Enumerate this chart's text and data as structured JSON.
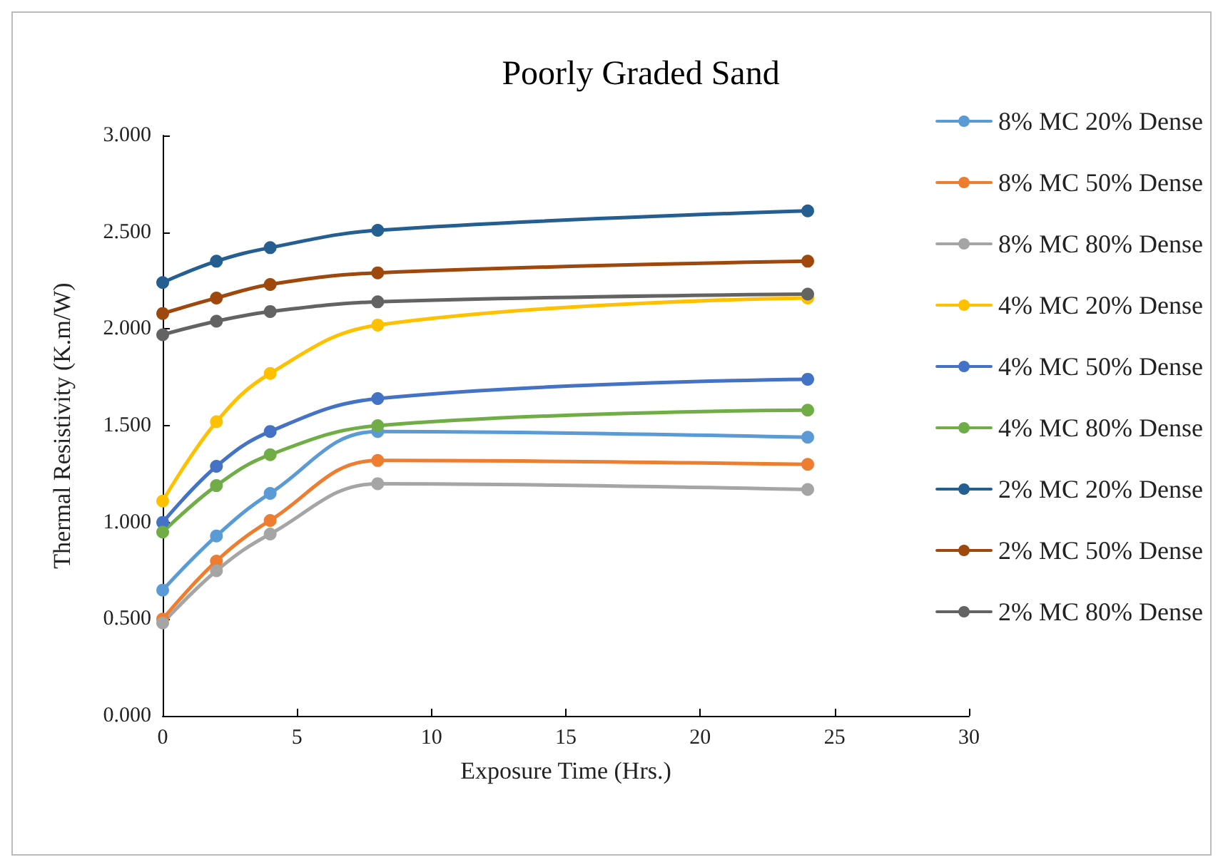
{
  "chart_data": {
    "type": "line",
    "title": "Poorly Graded Sand",
    "xlabel": "Exposure Time (Hrs.)",
    "ylabel": "Thermal Resistivity (K.m/W)",
    "x": [
      0,
      2,
      4,
      8,
      24
    ],
    "xlim": [
      0,
      30
    ],
    "xticks": [
      0,
      5,
      10,
      15,
      20,
      25,
      30
    ],
    "ylim": [
      0,
      3
    ],
    "yticks": [
      {
        "value": 0,
        "label": "0.000"
      },
      {
        "value": 0.5,
        "label": "0.500"
      },
      {
        "value": 1,
        "label": "1.000"
      },
      {
        "value": 1.5,
        "label": "1.500"
      },
      {
        "value": 2,
        "label": "2.000"
      },
      {
        "value": 2.5,
        "label": "2.500"
      },
      {
        "value": 3,
        "label": "3.000"
      }
    ],
    "grid": false,
    "legend": "right",
    "marker": "circle",
    "line_style": "solid",
    "series": [
      {
        "name": "8% MC 20% Dense",
        "color": "#5b9bd5",
        "values": [
          0.65,
          0.93,
          1.15,
          1.47,
          1.44
        ]
      },
      {
        "name": "8% MC 50% Dense",
        "color": "#ed7d31",
        "values": [
          0.5,
          0.8,
          1.01,
          1.32,
          1.3
        ]
      },
      {
        "name": "8% MC 80% Dense",
        "color": "#a5a5a5",
        "values": [
          0.48,
          0.75,
          0.94,
          1.2,
          1.17
        ]
      },
      {
        "name": "4% MC 20% Dense",
        "color": "#ffc000",
        "values": [
          1.11,
          1.52,
          1.77,
          2.02,
          2.16
        ]
      },
      {
        "name": "4% MC 50% Dense",
        "color": "#4472c4",
        "values": [
          1.0,
          1.29,
          1.47,
          1.64,
          1.74
        ]
      },
      {
        "name": "4% MC 80% Dense",
        "color": "#70ad47",
        "values": [
          0.95,
          1.19,
          1.35,
          1.5,
          1.58
        ]
      },
      {
        "name": "2% MC 20% Dense",
        "color": "#255e91",
        "values": [
          2.24,
          2.35,
          2.42,
          2.51,
          2.61
        ]
      },
      {
        "name": "2% MC 50% Dense",
        "color": "#9e480e",
        "values": [
          2.08,
          2.16,
          2.23,
          2.29,
          2.35
        ]
      },
      {
        "name": "2% MC 80% Dense",
        "color": "#636363",
        "values": [
          1.97,
          2.04,
          2.09,
          2.14,
          2.18
        ]
      }
    ]
  }
}
